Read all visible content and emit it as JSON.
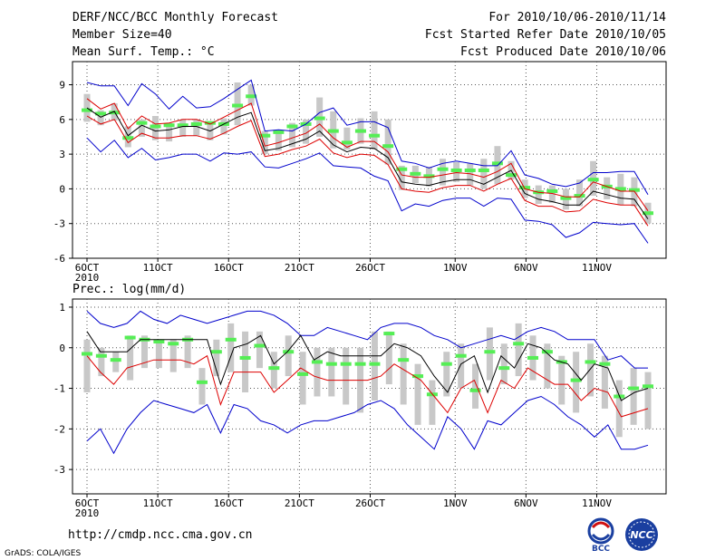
{
  "header": {
    "title": "DERF/NCC/BCC Monthly Forecast",
    "member_size": "Member Size=40",
    "variable": "Mean Surf. Temp.: °C",
    "period": "For 2010/10/06-2010/11/14",
    "started": "Fcst Started Refer Date 2010/10/05",
    "produced": "Fcst Produced Date 2010/10/06"
  },
  "footer": {
    "url": "http://cmdp.ncc.cma.gov.cn",
    "credit": "GrADS: COLA/IGES",
    "logo_left_text": "BCC",
    "logo_right_text": "NCC"
  },
  "colors": {
    "envelope": "#0000cc",
    "spread": "#dd0000",
    "mean": "#000000",
    "box": "#c8c8c8",
    "marker": "#55ee55"
  },
  "chart_data": [
    {
      "type": "line",
      "title": "Mean Surf. Temp.: °C",
      "ylim": [
        -6,
        11
      ],
      "yticks": [
        -6,
        -3,
        0,
        3,
        6,
        9
      ],
      "x_tick_labels": [
        "6OCT",
        "11OCT",
        "16OCT",
        "21OCT",
        "26OCT",
        "1NOV",
        "6NOV",
        "11NOV"
      ],
      "x_tick_days": [
        1,
        6,
        11,
        16,
        21,
        27,
        32,
        37
      ],
      "x_sub_label": "2010",
      "days": 40,
      "series": [
        {
          "name": "max",
          "values": [
            9.2,
            8.9,
            8.9,
            7.2,
            9.1,
            8.2,
            6.9,
            8.0,
            7.0,
            7.1,
            7.8,
            8.6,
            9.4,
            5.0,
            5.1,
            5.0,
            5.6,
            6.6,
            7.0,
            5.5,
            5.8,
            5.8,
            5.3,
            2.4,
            2.2,
            1.8,
            2.2,
            2.4,
            2.2,
            2.0,
            2.0,
            3.3,
            1.2,
            0.9,
            0.4,
            0.2,
            0.5,
            1.4,
            1.4,
            1.5,
            1.5,
            -0.5
          ]
        },
        {
          "name": "upper",
          "values": [
            7.8,
            6.9,
            7.4,
            5.2,
            6.3,
            5.6,
            5.7,
            6.0,
            6.0,
            5.6,
            6.2,
            6.8,
            7.4,
            3.7,
            4.0,
            4.4,
            4.8,
            5.6,
            4.4,
            3.6,
            4.1,
            4.1,
            3.2,
            1.2,
            1.0,
            1.0,
            1.2,
            1.4,
            1.3,
            1.0,
            1.5,
            2.2,
            0.0,
            -0.3,
            -0.4,
            -0.7,
            -0.7,
            0.6,
            0.2,
            -0.2,
            -0.2,
            -1.9
          ]
        },
        {
          "name": "mean",
          "values": [
            7.0,
            6.2,
            6.7,
            4.6,
            5.5,
            5.0,
            5.1,
            5.4,
            5.4,
            5.0,
            5.6,
            6.2,
            6.6,
            3.3,
            3.5,
            3.9,
            4.3,
            5.0,
            3.8,
            3.2,
            3.6,
            3.5,
            2.7,
            0.6,
            0.4,
            0.3,
            0.6,
            0.8,
            0.8,
            0.4,
            1.0,
            1.6,
            -0.4,
            -0.9,
            -1.1,
            -1.4,
            -1.4,
            -0.2,
            -0.5,
            -0.8,
            -0.9,
            -2.6
          ]
        },
        {
          "name": "lower",
          "values": [
            6.3,
            5.6,
            6.0,
            4.0,
            4.8,
            4.4,
            4.4,
            4.6,
            4.6,
            4.3,
            4.8,
            5.4,
            5.9,
            2.8,
            3.0,
            3.4,
            3.7,
            4.3,
            3.1,
            2.7,
            3.0,
            2.9,
            2.1,
            0.0,
            -0.2,
            -0.3,
            0.1,
            0.3,
            0.3,
            -0.2,
            0.4,
            0.9,
            -1.0,
            -1.5,
            -1.5,
            -2.0,
            -1.9,
            -0.9,
            -1.2,
            -1.4,
            -1.4,
            -3.2
          ]
        },
        {
          "name": "min",
          "values": [
            4.4,
            3.2,
            4.2,
            2.7,
            3.5,
            2.5,
            2.7,
            3.0,
            3.0,
            2.4,
            3.1,
            3.0,
            3.2,
            1.9,
            1.8,
            2.2,
            2.6,
            3.1,
            2.0,
            1.9,
            1.8,
            1.1,
            0.7,
            -1.9,
            -1.3,
            -1.5,
            -1.0,
            -0.8,
            -0.8,
            -1.5,
            -0.8,
            -0.9,
            -2.7,
            -2.8,
            -3.1,
            -4.2,
            -3.8,
            -2.9,
            -3.0,
            -3.1,
            -3.0,
            -4.7
          ]
        }
      ],
      "boxes": [
        {
          "lo": 5.8,
          "hi": 8.2,
          "marker": 6.8
        },
        {
          "lo": 5.5,
          "hi": 6.8,
          "marker": 6.5
        },
        {
          "lo": 5.9,
          "hi": 7.4,
          "marker": 6.6
        },
        {
          "lo": 3.6,
          "hi": 5.4,
          "marker": 4.4
        },
        {
          "lo": 4.5,
          "hi": 6.0,
          "marker": 5.7
        },
        {
          "lo": 4.2,
          "hi": 6.3,
          "marker": 5.4
        },
        {
          "lo": 4.1,
          "hi": 5.7,
          "marker": 5.5
        },
        {
          "lo": 4.5,
          "hi": 6.0,
          "marker": 5.5
        },
        {
          "lo": 4.6,
          "hi": 6.0,
          "marker": 5.6
        },
        {
          "lo": 4.2,
          "hi": 5.6,
          "marker": 5.7
        },
        {
          "lo": 4.7,
          "hi": 6.1,
          "marker": 5.6
        },
        {
          "lo": 5.5,
          "hi": 9.2,
          "marker": 7.2
        },
        {
          "lo": 7.2,
          "hi": 9.0,
          "marker": 8.0
        },
        {
          "lo": 3.0,
          "hi": 5.0,
          "marker": 4.6
        },
        {
          "lo": 3.3,
          "hi": 5.1,
          "marker": 4.9
        },
        {
          "lo": 3.6,
          "hi": 5.7,
          "marker": 5.4
        },
        {
          "lo": 3.9,
          "hi": 6.0,
          "marker": 5.6
        },
        {
          "lo": 4.5,
          "hi": 7.9,
          "marker": 6.1
        },
        {
          "lo": 3.5,
          "hi": 6.7,
          "marker": 5.0
        },
        {
          "lo": 3.4,
          "hi": 5.3,
          "marker": 4.0
        },
        {
          "lo": 3.9,
          "hi": 6.1,
          "marker": 5.0
        },
        {
          "lo": 3.4,
          "hi": 6.7,
          "marker": 4.6
        },
        {
          "lo": 2.1,
          "hi": 6.0,
          "marker": 3.7
        },
        {
          "lo": -0.1,
          "hi": 2.0,
          "marker": 1.7
        },
        {
          "lo": 0.5,
          "hi": 2.0,
          "marker": 1.3
        },
        {
          "lo": 0.2,
          "hi": 1.9,
          "marker": 1.1
        },
        {
          "lo": 0.3,
          "hi": 2.6,
          "marker": 1.7
        },
        {
          "lo": 0.6,
          "hi": 2.3,
          "marker": 1.6
        },
        {
          "lo": 0.3,
          "hi": 2.2,
          "marker": 1.6
        },
        {
          "lo": 0.0,
          "hi": 2.6,
          "marker": 1.6
        },
        {
          "lo": 0.4,
          "hi": 3.7,
          "marker": 2.2
        },
        {
          "lo": 0.8,
          "hi": 2.4,
          "marker": 1.2
        },
        {
          "lo": -0.8,
          "hi": 0.8,
          "marker": 0.1
        },
        {
          "lo": -1.3,
          "hi": 0.3,
          "marker": -0.3
        },
        {
          "lo": -1.2,
          "hi": 0.3,
          "marker": -0.2
        },
        {
          "lo": -1.8,
          "hi": 0.0,
          "marker": -0.8
        },
        {
          "lo": -1.5,
          "hi": 0.8,
          "marker": -0.6
        },
        {
          "lo": -0.6,
          "hi": 2.4,
          "marker": 0.8
        },
        {
          "lo": -0.9,
          "hi": 1.0,
          "marker": 0.2
        },
        {
          "lo": -1.4,
          "hi": 1.3,
          "marker": 0.0
        },
        {
          "lo": -1.5,
          "hi": 1.0,
          "marker": -0.1
        },
        {
          "lo": -3.0,
          "hi": -1.2,
          "marker": -2.1
        }
      ]
    },
    {
      "type": "line",
      "title": "Prec.: log(mm/d)",
      "ylim": [
        -3.6,
        1.2
      ],
      "yticks": [
        -3,
        -2,
        -1,
        0,
        1
      ],
      "x_tick_labels": [
        "6OCT",
        "11OCT",
        "16OCT",
        "21OCT",
        "26OCT",
        "1NOV",
        "6NOV",
        "11NOV"
      ],
      "x_tick_days": [
        1,
        6,
        11,
        16,
        21,
        27,
        32,
        37
      ],
      "x_sub_label": "2010",
      "days": 40,
      "series": [
        {
          "name": "max",
          "values": [
            0.9,
            0.6,
            0.5,
            0.6,
            0.9,
            0.7,
            0.6,
            0.8,
            0.7,
            0.6,
            0.7,
            0.8,
            0.9,
            0.9,
            0.8,
            0.6,
            0.3,
            0.3,
            0.5,
            0.4,
            0.3,
            0.2,
            0.5,
            0.6,
            0.6,
            0.5,
            0.3,
            0.2,
            0.0,
            0.1,
            0.2,
            0.3,
            0.2,
            0.4,
            0.5,
            0.4,
            0.2,
            0.2,
            0.2,
            -0.3,
            -0.2,
            -0.5,
            -0.5
          ]
        },
        {
          "name": "mean",
          "values": [
            0.4,
            -0.1,
            -0.1,
            -0.1,
            0.2,
            0.2,
            0.2,
            0.2,
            0.2,
            0.2,
            -0.9,
            0.0,
            0.1,
            0.3,
            -0.4,
            -0.1,
            0.3,
            -0.3,
            -0.1,
            -0.2,
            -0.2,
            -0.2,
            -0.2,
            0.1,
            0.0,
            -0.2,
            -0.7,
            -1.1,
            -0.4,
            -0.2,
            -1.1,
            -0.2,
            -0.5,
            0.1,
            0.0,
            -0.3,
            -0.4,
            -0.8,
            -0.4,
            -0.5,
            -1.3,
            -1.1,
            -1.0
          ]
        },
        {
          "name": "lower",
          "values": [
            -0.2,
            -0.6,
            -0.9,
            -0.5,
            -0.4,
            -0.3,
            -0.3,
            -0.3,
            -0.4,
            -0.2,
            -1.4,
            -0.6,
            -0.6,
            -0.6,
            -1.1,
            -0.8,
            -0.5,
            -0.7,
            -0.8,
            -0.8,
            -0.8,
            -0.8,
            -0.7,
            -0.4,
            -0.6,
            -0.8,
            -1.2,
            -1.6,
            -1.0,
            -0.8,
            -1.6,
            -0.8,
            -1.0,
            -0.5,
            -0.7,
            -0.9,
            -0.9,
            -1.3,
            -1.0,
            -1.1,
            -1.7,
            -1.6,
            -1.5
          ]
        },
        {
          "name": "min",
          "values": [
            -2.3,
            -2.0,
            -2.6,
            -2.0,
            -1.6,
            -1.3,
            -1.4,
            -1.5,
            -1.6,
            -1.4,
            -2.1,
            -1.4,
            -1.5,
            -1.8,
            -1.9,
            -2.1,
            -1.9,
            -1.8,
            -1.8,
            -1.7,
            -1.6,
            -1.4,
            -1.3,
            -1.5,
            -1.9,
            -2.2,
            -2.5,
            -1.7,
            -2.0,
            -2.5,
            -1.8,
            -1.9,
            -1.6,
            -1.3,
            -1.2,
            -1.4,
            -1.7,
            -1.9,
            -2.2,
            -1.9,
            -2.5,
            -2.5,
            -2.4
          ]
        }
      ],
      "boxes": [
        {
          "lo": -1.1,
          "hi": 0.2,
          "marker": -0.15
        },
        {
          "lo": -0.7,
          "hi": 0.0,
          "marker": -0.2
        },
        {
          "lo": -0.6,
          "hi": -0.1,
          "marker": -0.3
        },
        {
          "lo": -0.8,
          "hi": 0.3,
          "marker": 0.25
        },
        {
          "lo": -0.5,
          "hi": 0.3,
          "marker": 0.2
        },
        {
          "lo": -0.5,
          "hi": 0.2,
          "marker": 0.15
        },
        {
          "lo": -0.6,
          "hi": 0.2,
          "marker": 0.1
        },
        {
          "lo": -0.5,
          "hi": 0.3,
          "marker": 0.2
        },
        {
          "lo": -1.4,
          "hi": -0.5,
          "marker": -0.85
        },
        {
          "lo": -0.7,
          "hi": 0.2,
          "marker": -0.1
        },
        {
          "lo": -0.6,
          "hi": 0.6,
          "marker": 0.2
        },
        {
          "lo": -1.1,
          "hi": 0.4,
          "marker": -0.25
        },
        {
          "lo": -0.5,
          "hi": 0.4,
          "marker": 0.05
        },
        {
          "lo": -1.0,
          "hi": -0.1,
          "marker": -0.5
        },
        {
          "lo": -0.7,
          "hi": 0.3,
          "marker": -0.1
        },
        {
          "lo": -1.4,
          "hi": -0.1,
          "marker": -0.65
        },
        {
          "lo": -1.2,
          "hi": 0.0,
          "marker": -0.35
        },
        {
          "lo": -1.2,
          "hi": 0.0,
          "marker": -0.4
        },
        {
          "lo": -1.4,
          "hi": 0.0,
          "marker": -0.4
        },
        {
          "lo": -1.6,
          "hi": 0.0,
          "marker": -0.4
        },
        {
          "lo": -1.3,
          "hi": 0.4,
          "marker": -0.4
        },
        {
          "lo": -0.9,
          "hi": 0.4,
          "marker": 0.35
        },
        {
          "lo": -1.4,
          "hi": 0.1,
          "marker": -0.3
        },
        {
          "lo": -1.9,
          "hi": -0.4,
          "marker": -0.7
        },
        {
          "lo": -1.9,
          "hi": -0.8,
          "marker": -1.15
        },
        {
          "lo": -1.2,
          "hi": -0.1,
          "marker": -0.4
        },
        {
          "lo": -1.0,
          "hi": 0.1,
          "marker": -0.2
        },
        {
          "lo": -1.5,
          "hi": -0.4,
          "marker": -1.05
        },
        {
          "lo": -0.8,
          "hi": 0.5,
          "marker": -0.1
        },
        {
          "lo": -0.9,
          "hi": 0.1,
          "marker": -0.5
        },
        {
          "lo": -0.7,
          "hi": 0.6,
          "marker": 0.1
        },
        {
          "lo": -0.8,
          "hi": 0.3,
          "marker": -0.25
        },
        {
          "lo": -1.0,
          "hi": 0.1,
          "marker": -0.1
        },
        {
          "lo": -1.4,
          "hi": -0.2,
          "marker": -0.35
        },
        {
          "lo": -1.6,
          "hi": -0.1,
          "marker": -0.8
        },
        {
          "lo": -1.2,
          "hi": 0.1,
          "marker": -0.35
        },
        {
          "lo": -1.5,
          "hi": -0.2,
          "marker": -0.4
        },
        {
          "lo": -2.2,
          "hi": -0.8,
          "marker": -1.2
        },
        {
          "lo": -1.9,
          "hi": -0.5,
          "marker": -1.0
        },
        {
          "lo": -2.0,
          "hi": -0.6,
          "marker": -0.95
        }
      ]
    }
  ]
}
